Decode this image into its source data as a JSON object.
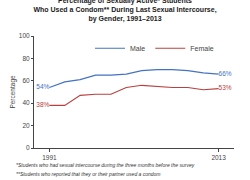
{
  "chart_data": {
    "type": "line",
    "title": "Percentage of Sexually Active* Students\nWho Used a Condom** During Last Sexual Intercourse,\nby Gender, 1991–2013",
    "ylabel": "Percentage",
    "annotations": [
      "*Students who had sexual intercourse during the three months before the survey",
      "**Students who reported that they or their partner used a condom"
    ],
    "x": [
      1991,
      1993,
      1995,
      1997,
      1999,
      2001,
      2003,
      2005,
      2007,
      2009,
      2011,
      2013
    ],
    "series": [
      {
        "name": "Male",
        "color": "#4472C4",
        "values": [
          54,
          59,
          61,
          65,
          65,
          66,
          69,
          70,
          70,
          69,
          67,
          66
        ],
        "value_labels": [
          "54%",
          null,
          null,
          null,
          null,
          null,
          null,
          null,
          null,
          null,
          null,
          "66%"
        ]
      },
      {
        "name": "Female",
        "color": "#B94040",
        "values": [
          38,
          38,
          47,
          48,
          48,
          54,
          56,
          55,
          54,
          54,
          52,
          53
        ],
        "value_labels": [
          "38%",
          null,
          null,
          null,
          null,
          null,
          null,
          null,
          null,
          null,
          null,
          "53%"
        ]
      }
    ],
    "xlim": [
      1989,
      2015
    ],
    "xticks": [
      1991,
      2013
    ],
    "ylim": [
      0,
      100
    ],
    "yticks": [
      0,
      20,
      40,
      60,
      80,
      100
    ],
    "grid": false,
    "legend": "upper left"
  }
}
